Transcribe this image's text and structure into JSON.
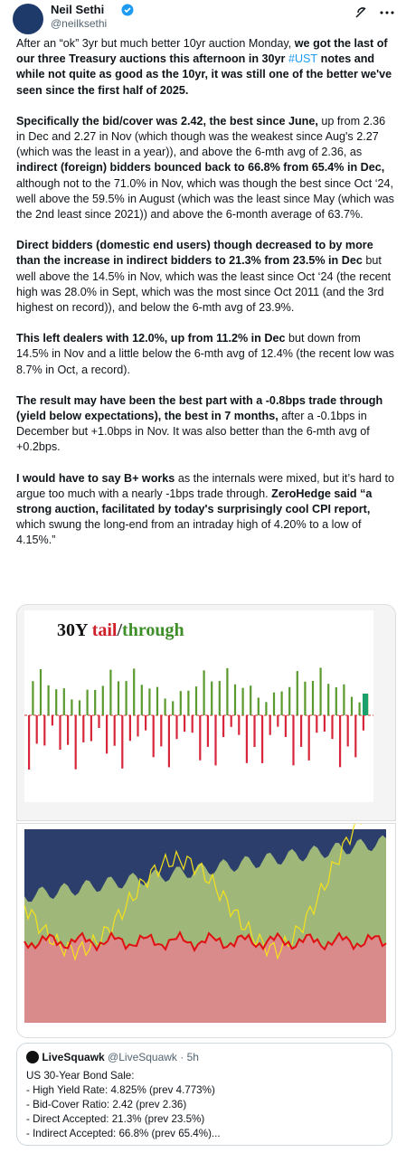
{
  "header": {
    "name": "Neil Sethi",
    "handle": "@neilksethi"
  },
  "body": {
    "paragraphs": [
      [
        {
          "text": "After an “ok” 3yr but much better 10yr auction Monday, ",
          "style": "normal"
        },
        {
          "text": "we got the last of our three Treasury auctions this afternoon in 30yr ",
          "style": "bold"
        },
        {
          "text": "#UST",
          "style": "link"
        },
        {
          "text": " notes and while not quite as good as the 10yr, it was still one of the better we've seen since the first half of 2025.",
          "style": "bold"
        }
      ],
      [
        {
          "text": "Specifically the bid/cover was 2.42, the best since June,",
          "style": "bold"
        },
        {
          "text": " up from 2.36 in Dec and 2.27 in Nov (which though was the weakest since Aug's 2.27 (which was the least in a year)), and above the 6-mth avg of 2.36, as ",
          "style": "normal"
        },
        {
          "text": "indirect (foreign) bidders bounced back to 66.8% from 65.4% in Dec,",
          "style": "bold"
        },
        {
          "text": " although not to the 71.0% in Nov, which was though the best since Oct ‘24, well above the 59.5% in August (which was the least since May (which was the 2nd least since 2021)) and above the 6-month average of 63.7%.",
          "style": "normal"
        }
      ],
      [
        {
          "text": "Direct bidders (domestic end users) though decreased to by more than the increase in indirect bidders to 21.3% from 23.5% in Dec",
          "style": "bold"
        },
        {
          "text": " but well above the 14.5% in Nov, which was the least since Oct ‘24 (the recent high was 28.0% in Sept, which was the most since Oct 2011 (and the 3rd highest on record)), and below the 6-mth avg of 23.9%.",
          "style": "normal"
        }
      ],
      [
        {
          "text": "This left dealers with 12.0%, up from 11.2% in Dec",
          "style": "bold"
        },
        {
          "text": " but down from 14.5% in Nov and a little below the 6-mth avg of 12.4% (the recent low was 8.7% in Oct, a record).",
          "style": "normal"
        }
      ],
      [
        {
          "text": "The result may have been the best part with a -0.8bps trade through (yield below expectations), the best in 7 months,",
          "style": "bold"
        },
        {
          "text": " after a -0.1bps in December but +1.0bps in Nov. It was also better than the 6-mth avg of +0.2bps.",
          "style": "normal"
        }
      ],
      [
        {
          "text": "I would have to say B+ works",
          "style": "bold"
        },
        {
          "text": " as the internals were mixed, but it’s hard to argue too much with a nearly -1bps trade through. ",
          "style": "normal"
        },
        {
          "text": "ZeroHedge said “a strong auction, facilitated  by today's surprisingly cool CPI report,",
          "style": "bold"
        },
        {
          "text": " which swung the long-end from an intraday high of 4.20% to a low of 4.15%.”",
          "style": "normal"
        }
      ]
    ]
  },
  "image": {
    "title": [
      {
        "text": "30Y ",
        "color": "#111111"
      },
      {
        "text": "tail",
        "color": "#d0202a"
      },
      {
        "text": "/",
        "color": "#333333"
      },
      {
        "text": "through",
        "color": "#3e8e2a"
      }
    ]
  },
  "quote": {
    "name": "LiveSquawk",
    "handle": "@LiveSquawk · 5h",
    "lines": [
      "US 30-Year Bond Sale:",
      "- High Yield Rate: 4.825% (prev 4.773%)",
      "- Bid-Cover Ratio: 2.42 (prev 2.36)",
      "- Direct Accepted: 21.3% (prev 23.5%)",
      "- Indirect Accepted: 66.8% (prev 65.4%)..."
    ]
  }
}
